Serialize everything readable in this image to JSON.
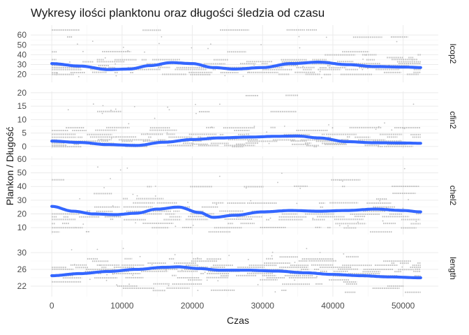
{
  "chart_data": {
    "type": "line",
    "title": "Wykresy ilości planktonu oraz długości śledzia od czasu",
    "xlabel": "Czas",
    "ylabel": "Plankon / Długość",
    "xlim": [
      -3000,
      55000
    ],
    "x_ticks": [
      0,
      10000,
      20000,
      30000,
      40000,
      50000
    ],
    "x_tick_labels": [
      "0",
      "10000",
      "20000",
      "30000",
      "40000",
      "50000"
    ],
    "point_color": "#bdbdbd",
    "line_color": "#3366ff",
    "panels": [
      {
        "label": "lcop2",
        "ylim": [
          12,
          70
        ],
        "y_ticks": [
          20,
          30,
          40,
          50,
          60
        ],
        "y_tick_labels": [
          "20",
          "30",
          "40",
          "50",
          "60"
        ],
        "band_levels": [
          20,
          22,
          25,
          27,
          29,
          31,
          33,
          35,
          37,
          40,
          43,
          45,
          48,
          52,
          58,
          65
        ],
        "trend": {
          "x": [
            0,
            4000,
            8000,
            11000,
            14000,
            17000,
            20000,
            23000,
            26000,
            30000,
            34000,
            38000,
            42000,
            46000,
            50000,
            52500
          ],
          "y": [
            31,
            28.5,
            25,
            25.5,
            29,
            32,
            31,
            27,
            25.5,
            27,
            31,
            32.5,
            30,
            28,
            27.5,
            27
          ]
        }
      },
      {
        "label": "cfin2",
        "ylim": [
          -0.8,
          20.5
        ],
        "y_ticks": [
          0,
          5,
          10,
          15,
          20
        ],
        "y_tick_labels": [
          "0",
          "5",
          "10",
          "15",
          "20"
        ],
        "band_levels": [
          0,
          0.4,
          0.8,
          1.2,
          2,
          2.5,
          3.5,
          4.5,
          6,
          7,
          9,
          13,
          19
        ],
        "trend": {
          "x": [
            0,
            4000,
            8000,
            12000,
            16000,
            20000,
            24000,
            28000,
            32000,
            35000,
            38000,
            42000,
            46000,
            50000,
            52500
          ],
          "y": [
            2,
            1.5,
            0.7,
            0.4,
            1.6,
            2.6,
            3.2,
            3.5,
            3.8,
            3.9,
            3.2,
            1.8,
            1.4,
            1.3,
            1.2
          ]
        }
      },
      {
        "label": "chel2",
        "ylim": [
          5,
          62
        ],
        "y_ticks": [
          10,
          20,
          30,
          40,
          50,
          60
        ],
        "y_tick_labels": [
          "10",
          "20",
          "30",
          "40",
          "50",
          "60"
        ],
        "band_levels": [
          7,
          10,
          13,
          16,
          18,
          20,
          22,
          25,
          28,
          31,
          35,
          40,
          45
        ],
        "trend": {
          "x": [
            0,
            3000,
            6000,
            9000,
            12000,
            15000,
            18000,
            21000,
            23000,
            26000,
            30000,
            34000,
            38000,
            42000,
            46000,
            50000,
            52500
          ],
          "y": [
            25.5,
            22,
            20,
            19.5,
            20.5,
            23.5,
            25,
            21,
            17.5,
            19,
            21.5,
            22.5,
            22,
            22.5,
            23.5,
            22.5,
            21.5
          ]
        }
      },
      {
        "label": "length",
        "ylim": [
          19.5,
          33
        ],
        "y_ticks": [
          22,
          26,
          30
        ],
        "y_tick_labels": [
          "22",
          "26",
          "30"
        ],
        "band_levels": [
          20.5,
          21,
          21.5,
          22,
          22.5,
          23,
          23.5,
          24,
          24.5,
          25,
          25.5,
          26,
          26.5,
          27,
          27.5,
          28,
          28.5,
          29
        ],
        "trend": {
          "x": [
            0,
            4000,
            8000,
            12000,
            16000,
            18000,
            21000,
            24000,
            28000,
            32000,
            36000,
            40000,
            44000,
            48000,
            52500
          ],
          "y": [
            24.5,
            25,
            25.5,
            26,
            26.5,
            26.6,
            26.2,
            25.8,
            25.8,
            25.6,
            25.2,
            24.8,
            24.5,
            24.2,
            24
          ]
        }
      }
    ]
  }
}
